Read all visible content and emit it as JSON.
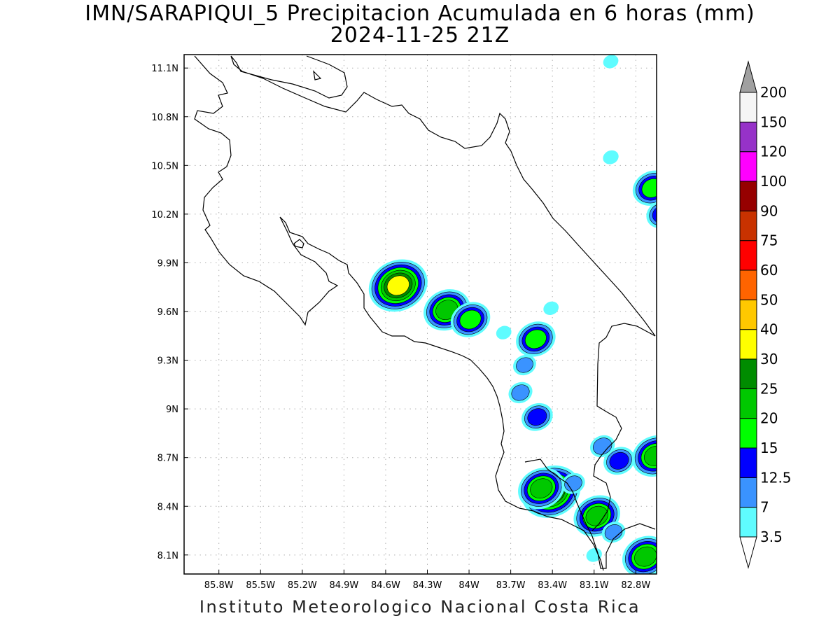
{
  "title": {
    "line1": "IMN/SARAPIQUI_5 Precipitacion Acumulada en 6 horas (mm)",
    "line2": "2024-11-25 21Z"
  },
  "footer": "Instituto Meteorologico Nacional Costa Rica",
  "map": {
    "lon_range": [
      -86.0,
      -82.6
    ],
    "lat_range": [
      8.0,
      11.2
    ],
    "lon_ticks": [
      {
        "value": -85.8,
        "label": "85.8W"
      },
      {
        "value": -85.5,
        "label": "85.5W"
      },
      {
        "value": -85.2,
        "label": "85.2W"
      },
      {
        "value": -84.9,
        "label": "84.9W"
      },
      {
        "value": -84.6,
        "label": "84.6W"
      },
      {
        "value": -84.3,
        "label": "84.3W"
      },
      {
        "value": -84.0,
        "label": "84W"
      },
      {
        "value": -83.7,
        "label": "83.7W"
      },
      {
        "value": -83.4,
        "label": "83.4W"
      },
      {
        "value": -83.1,
        "label": "83.1W"
      },
      {
        "value": -82.8,
        "label": "82.8W"
      }
    ],
    "lat_ticks": [
      {
        "value": 8.1,
        "label": "8.1N"
      },
      {
        "value": 8.4,
        "label": "8.4N"
      },
      {
        "value": 8.7,
        "label": "8.7N"
      },
      {
        "value": 9.0,
        "label": "9N"
      },
      {
        "value": 9.3,
        "label": "9.3N"
      },
      {
        "value": 9.6,
        "label": "9.6N"
      },
      {
        "value": 9.9,
        "label": "9.9N"
      },
      {
        "value": 10.2,
        "label": "10.2N"
      },
      {
        "value": 10.5,
        "label": "10.5N"
      },
      {
        "value": 10.8,
        "label": "10.8N"
      },
      {
        "value": 11.1,
        "label": "11.1N"
      }
    ],
    "grid": "dotted"
  },
  "colorbar": {
    "levels": [
      {
        "label": "3.5",
        "color": "#5ffcff"
      },
      {
        "label": "7",
        "color": "#3a93ff"
      },
      {
        "label": "12.5",
        "color": "#0000ff"
      },
      {
        "label": "15",
        "color": "#00ff00"
      },
      {
        "label": "20",
        "color": "#00c800"
      },
      {
        "label": "25",
        "color": "#008c00"
      },
      {
        "label": "30",
        "color": "#ffff00"
      },
      {
        "label": "40",
        "color": "#ffc800"
      },
      {
        "label": "50",
        "color": "#ff6400"
      },
      {
        "label": "60",
        "color": "#ff0000"
      },
      {
        "label": "75",
        "color": "#c83200"
      },
      {
        "label": "90",
        "color": "#960000"
      },
      {
        "label": "100",
        "color": "#ff00ff"
      },
      {
        "label": "120",
        "color": "#9632c8"
      },
      {
        "label": "150",
        "color": "#f5f5f5"
      },
      {
        "label": "200",
        "color": "#a0a0a0"
      }
    ]
  },
  "precip_cells": [
    {
      "lon": -84.51,
      "lat": 9.76,
      "max_mm": 32
    },
    {
      "lon": -84.16,
      "lat": 9.61,
      "max_mm": 22
    },
    {
      "lon": -83.99,
      "lat": 9.55,
      "max_mm": 18
    },
    {
      "lon": -83.52,
      "lat": 9.43,
      "max_mm": 18
    },
    {
      "lon": -83.6,
      "lat": 9.27,
      "max_mm": 8
    },
    {
      "lon": -83.63,
      "lat": 9.1,
      "max_mm": 10
    },
    {
      "lon": -83.51,
      "lat": 8.95,
      "max_mm": 13
    },
    {
      "lon": -83.41,
      "lat": 8.49,
      "max_mm": 34
    },
    {
      "lon": -83.48,
      "lat": 8.51,
      "max_mm": 22
    },
    {
      "lon": -83.08,
      "lat": 8.34,
      "max_mm": 22
    },
    {
      "lon": -82.73,
      "lat": 8.09,
      "max_mm": 23
    },
    {
      "lon": -82.66,
      "lat": 8.71,
      "max_mm": 20
    },
    {
      "lon": -82.68,
      "lat": 10.36,
      "max_mm": 18
    },
    {
      "lon": -82.61,
      "lat": 10.2,
      "max_mm": 14
    },
    {
      "lon": -82.92,
      "lat": 8.68,
      "max_mm": 13
    },
    {
      "lon": -83.04,
      "lat": 8.77,
      "max_mm": 12
    },
    {
      "lon": -82.98,
      "lat": 10.55,
      "max_mm": 5
    },
    {
      "lon": -83.25,
      "lat": 8.54,
      "max_mm": 9
    },
    {
      "lon": -82.96,
      "lat": 8.24,
      "max_mm": 9
    },
    {
      "lon": -83.1,
      "lat": 8.1,
      "max_mm": 5
    },
    {
      "lon": -82.98,
      "lat": 11.14,
      "max_mm": 4
    },
    {
      "lon": -83.41,
      "lat": 9.62,
      "max_mm": 4
    },
    {
      "lon": -83.75,
      "lat": 9.47,
      "max_mm": 4
    }
  ]
}
